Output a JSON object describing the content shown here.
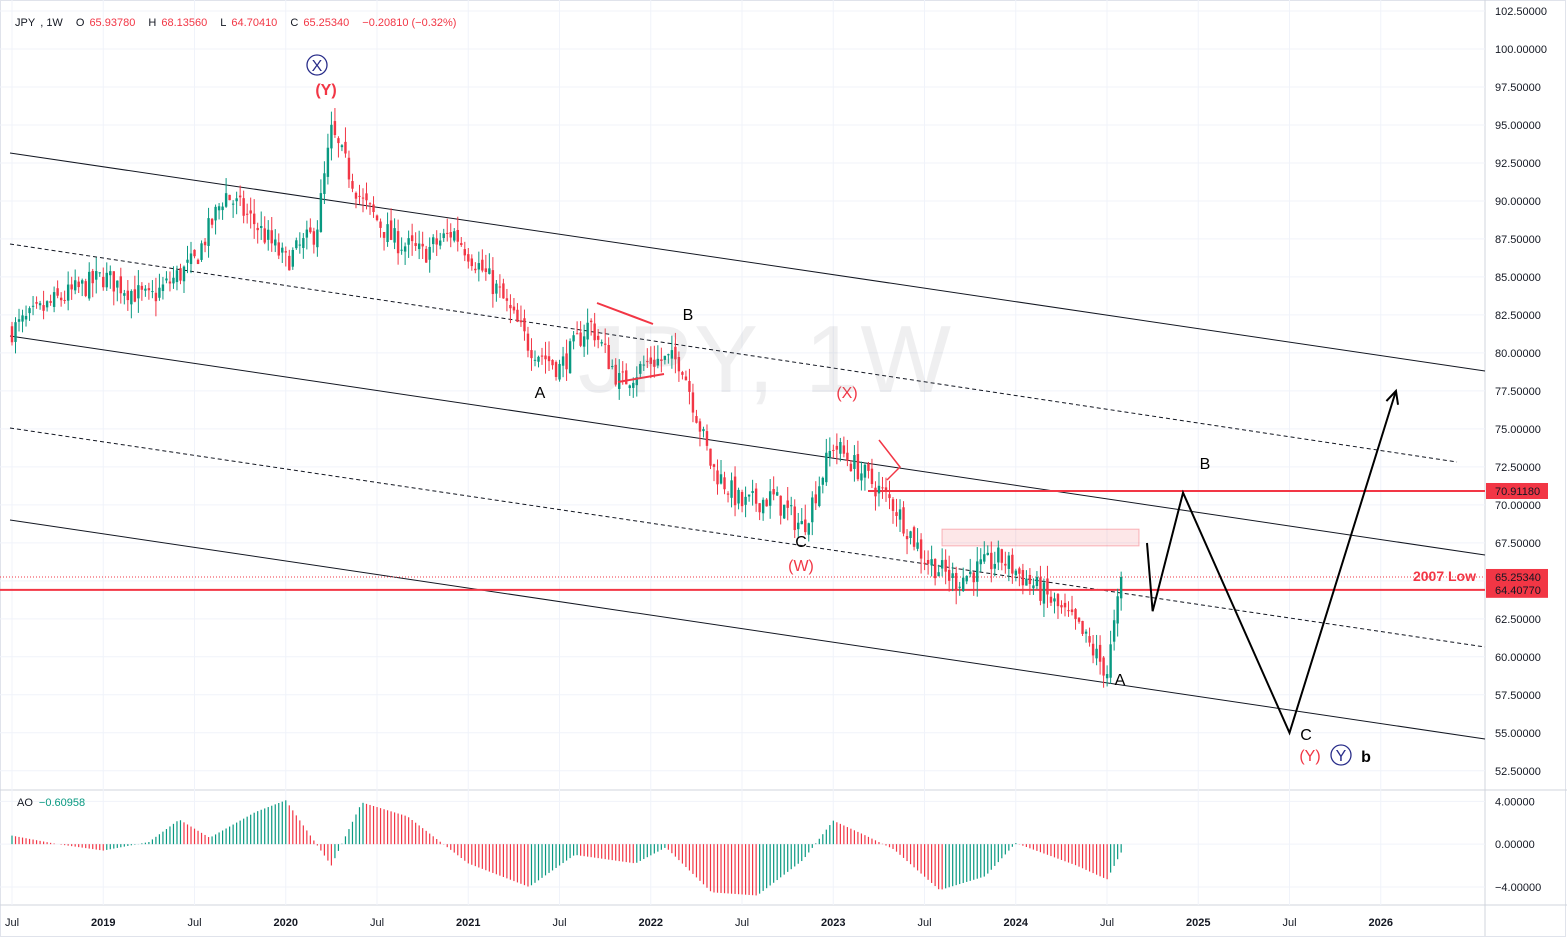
{
  "legend": {
    "symbol": "JPY",
    "interval": "1W",
    "open_key": "O",
    "open": "65.93780",
    "high_key": "H",
    "high": "68.13560",
    "low_key": "L",
    "low": "64.70410",
    "close_key": "C",
    "close": "65.25340",
    "change": "−0.20810 (−0.32%)"
  },
  "watermark": "JPY, 1W",
  "ao_legend": {
    "name": "AO",
    "value": "−0.60958"
  },
  "colors": {
    "up": "#089981",
    "down": "#f23645",
    "level": "#f23645",
    "grid": "#f0f3fa",
    "text": "#131722",
    "wave_blue": "#2a2e8a"
  },
  "chart_data": [
    {
      "type": "candlestick",
      "title": "JPY, 1W",
      "ylim": [
        51.3,
        102.5
      ],
      "y_ticks": [
        "52.50000",
        "55.00000",
        "57.50000",
        "60.00000",
        "62.50000",
        "65.00000",
        "67.50000",
        "70.00000",
        "72.50000",
        "75.00000",
        "77.50000",
        "80.00000",
        "82.50000",
        "85.00000",
        "87.50000",
        "90.00000",
        "92.50000",
        "95.00000",
        "97.50000",
        "100.00000",
        "102.50000"
      ],
      "x_ticks": [
        "Jul",
        "2019",
        "Jul",
        "2020",
        "Jul",
        "2021",
        "Jul",
        "2022",
        "Jul",
        "2023",
        "Jul",
        "2024",
        "Jul",
        "2025",
        "Jul",
        "2026"
      ],
      "price_path": [
        [
          "2018-07",
          81.5
        ],
        [
          "2018-10",
          83.5
        ],
        [
          "2019-01",
          85.0
        ],
        [
          "2019-04",
          83.5
        ],
        [
          "2019-07",
          86.0
        ],
        [
          "2019-09",
          90.5
        ],
        [
          "2019-11",
          88.5
        ],
        [
          "2020-01",
          86.0
        ],
        [
          "2020-03",
          88.0
        ],
        [
          "2020-04",
          94.5
        ],
        [
          "2020-06",
          90.0
        ],
        [
          "2020-08",
          87.5
        ],
        [
          "2020-10",
          86.5
        ],
        [
          "2020-12",
          88.0
        ],
        [
          "2021-03",
          84.0
        ],
        [
          "2021-05",
          80.5
        ],
        [
          "2021-07",
          79.0
        ],
        [
          "2021-09",
          82.0
        ],
        [
          "2021-11",
          78.0
        ],
        [
          "2022-01",
          79.5
        ],
        [
          "2022-03",
          79.5
        ],
        [
          "2022-05",
          72.5
        ],
        [
          "2022-07",
          70.0
        ],
        [
          "2022-09",
          70.5
        ],
        [
          "2022-11",
          68.5
        ],
        [
          "2023-01",
          74.0
        ],
        [
          "2023-03",
          72.0
        ],
        [
          "2023-05",
          70.0
        ],
        [
          "2023-07",
          66.5
        ],
        [
          "2023-09",
          65.0
        ],
        [
          "2023-12",
          66.5
        ],
        [
          "2024-03",
          64.0
        ],
        [
          "2024-05",
          62.0
        ],
        [
          "2024-07",
          59.0
        ],
        [
          "2024-08",
          65.25
        ]
      ],
      "current_price": "65.25340",
      "levels": [
        {
          "value": "70.91180",
          "label": ""
        },
        {
          "value": "64.40770",
          "label": "2007 Low"
        }
      ],
      "projection": [
        [
          "2024-09",
          66.5
        ],
        [
          "2024-10",
          63.0
        ],
        [
          "2024-12",
          70.8
        ],
        [
          "2025-07",
          55.0
        ],
        [
          "2026-02",
          77.5
        ]
      ],
      "wave_labels": {
        "x": "X",
        "y1": "(Y)",
        "a1": "A",
        "b1": "B",
        "c1": "C",
        "w": "(W)",
        "xp": "(X)",
        "a2": "A",
        "b2": "B",
        "c2": "C",
        "y2": "(Y)",
        "y3": "Y",
        "b3": "b"
      }
    },
    {
      "type": "bar",
      "title": "AO",
      "ylim": [
        -5.5,
        4.5
      ],
      "y_ticks": [
        "4.00000",
        "0.00000",
        "−4.00000"
      ],
      "value_path": [
        [
          "2018-07",
          0.8
        ],
        [
          "2018-10",
          0.0
        ],
        [
          "2019-01",
          -0.6
        ],
        [
          "2019-04",
          0.2
        ],
        [
          "2019-06",
          2.3
        ],
        [
          "2019-08",
          0.6
        ],
        [
          "2019-11",
          3.0
        ],
        [
          "2020-01",
          4.1
        ],
        [
          "2020-04",
          -2.0
        ],
        [
          "2020-06",
          3.9
        ],
        [
          "2020-09",
          2.6
        ],
        [
          "2021-01",
          -1.8
        ],
        [
          "2021-05",
          -4.0
        ],
        [
          "2021-08",
          -1.0
        ],
        [
          "2021-12",
          -1.8
        ],
        [
          "2022-02",
          -0.3
        ],
        [
          "2022-05",
          -4.5
        ],
        [
          "2022-08",
          -4.8
        ],
        [
          "2022-11",
          -1.5
        ],
        [
          "2023-01",
          2.2
        ],
        [
          "2023-03",
          0.9
        ],
        [
          "2023-05",
          -0.5
        ],
        [
          "2023-08",
          -4.3
        ],
        [
          "2023-11",
          -3.0
        ],
        [
          "2024-01",
          0.1
        ],
        [
          "2024-05",
          -2.0
        ],
        [
          "2024-07",
          -3.3
        ],
        [
          "2024-08",
          -0.6
        ]
      ]
    }
  ]
}
